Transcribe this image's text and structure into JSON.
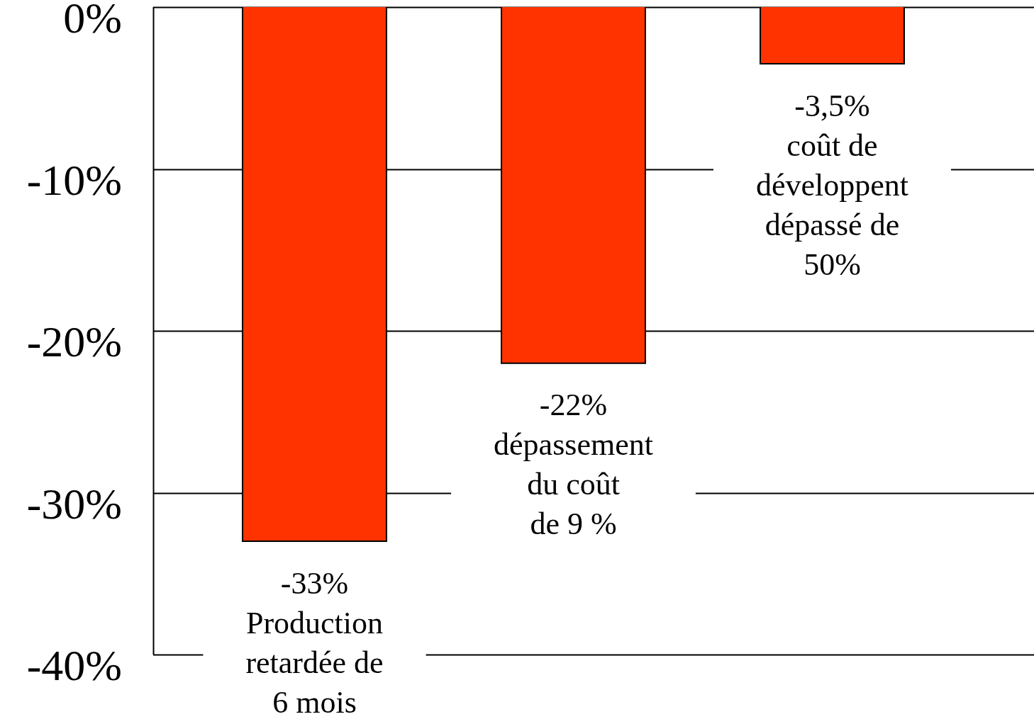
{
  "chart_data": {
    "type": "bar",
    "categories": [
      "Production\nretardée de\n6 mois",
      "dépassement\ndu coût\nde 9 %",
      "coût de\ndéveloppent\ndépassé de\n50%"
    ],
    "values": [
      -33,
      -22,
      -3.5
    ],
    "value_labels": [
      "-33%",
      "-22%",
      "-3,5%"
    ],
    "color": "#ff3300",
    "ylim": [
      -40,
      0
    ],
    "yticks": [
      {
        "value": 0,
        "label": "0%"
      },
      {
        "value": -10,
        "label": "-10%"
      },
      {
        "value": -20,
        "label": "-20%"
      },
      {
        "value": -30,
        "label": "-30%"
      },
      {
        "value": -40,
        "label": "-40%"
      }
    ],
    "grid": "y"
  }
}
